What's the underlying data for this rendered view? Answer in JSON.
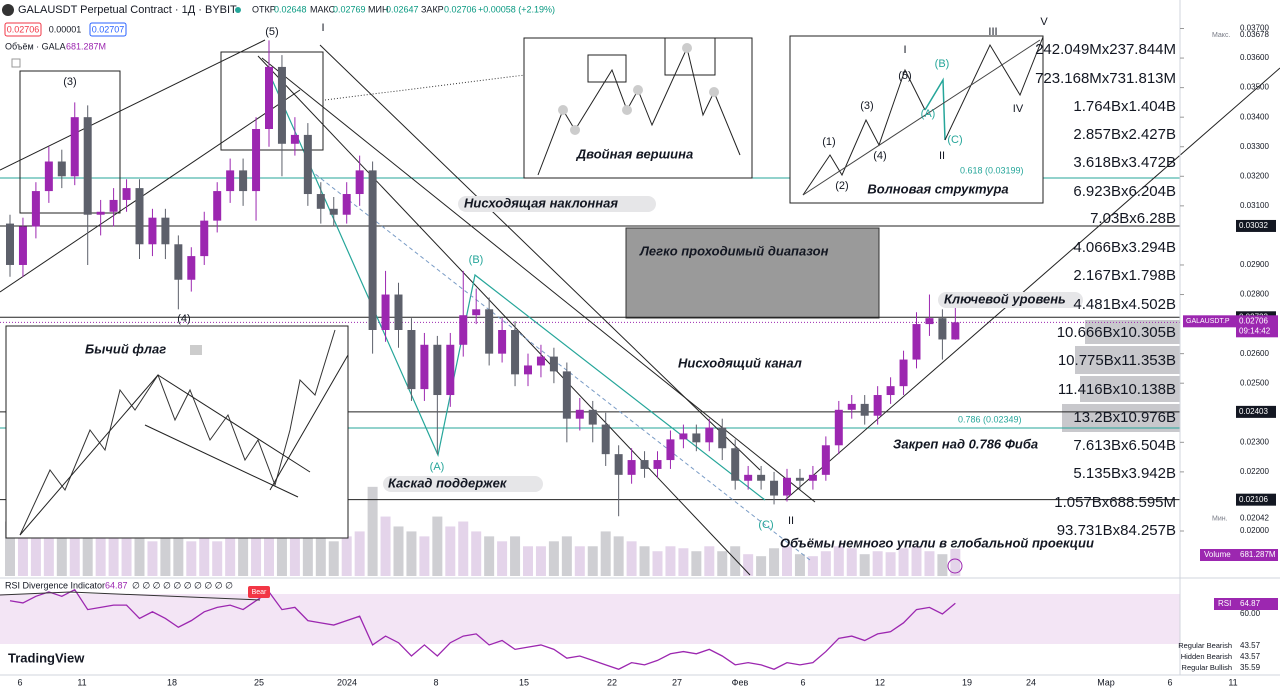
{
  "header": {
    "title": "GALAUSDT Perpetual Contract · 1Д · BYBIT",
    "open_label": "ОТКР",
    "open": "0.02648",
    "high_label": "МАКС",
    "high": "0.02769",
    "low_label": "МИН",
    "low": "0.02647",
    "close_label": "ЗАКР",
    "close": "0.02706",
    "change": "+0.00058 (+2.19%)",
    "sell": "0.02706",
    "spread": "0.00001",
    "buy": "0.02707",
    "volume_title": "Объём · GALA",
    "volume_value": "681.287M"
  },
  "waves": {
    "w3": "(3)",
    "w5": "(5)",
    "w1": "I",
    "w4": "(4)",
    "wA": "(A)",
    "wB": "(B)",
    "wC": "(C)",
    "w2": "II",
    "wV": "V"
  },
  "inset_double_top": {
    "title": "Двойная вершина"
  },
  "inset_waves": {
    "title": "Волновая структура",
    "labels": [
      "I",
      "(5)",
      "(B)",
      "(3)",
      "(A)",
      "(1)",
      "(4)",
      "(C)",
      "II",
      "(2)",
      "III",
      "V",
      "IV"
    ],
    "fib": "0.618 (0.03199)"
  },
  "inset_flag": {
    "title": "Бычий флаг"
  },
  "annotations": {
    "slope": "Нисходящая наклонная",
    "range": "Легко проходимый диапазон",
    "key": "Ключевой уровень",
    "channel": "Нисходящий канал",
    "fib786": "0.786 (0.02349)",
    "hold": "Закреп над 0.786 Фиба",
    "cascade": "Каскад поддержек",
    "volumes": "Объёмы немного упали в глобальной проекции"
  },
  "volume_profile": [
    "242.049Mx237.844M",
    "723.168Mx731.813M",
    "1.764Bx1.404B",
    "2.857Bx2.427B",
    "3.618Bx3.472B",
    "6.923Bx6.204B",
    "7.03Bx6.28B",
    "4.066Bx3.294B",
    "2.167Bx1.798B",
    "4.481Bx4.502B",
    "10.666Bx10.305B",
    "10.775Bx11.353B",
    "11.416Bx10.138B",
    "13.2Bx10.976B",
    "7.613Bx6.504B",
    "5.135Bx3.942B",
    "1.057Bx688.595M",
    "93.731Bx84.257B"
  ],
  "x_axis": [
    "6",
    "11",
    "18",
    "25",
    "2024",
    "8",
    "15",
    "22",
    "27",
    "Фев",
    "6",
    "12",
    "19",
    "24",
    "Мар",
    "6",
    "11"
  ],
  "logo": "TradingView",
  "chart_data": {
    "type": "candlestick",
    "up_color": "#9c27b0",
    "down_color": "#5d606b",
    "ylim": [
      0.02,
      0.037
    ],
    "yticks": [
      {
        "value": 0.037,
        "label": "0.03700"
      },
      {
        "value": 0.036,
        "label": "0.03600"
      },
      {
        "value": 0.035,
        "label": "0.03500"
      },
      {
        "value": 0.034,
        "label": "0.03400"
      },
      {
        "value": 0.033,
        "label": "0.03300"
      },
      {
        "value": 0.032,
        "label": "0.03200"
      },
      {
        "value": 0.031,
        "label": "0.03100"
      },
      {
        "value": 0.029,
        "label": "0.02900"
      },
      {
        "value": 0.028,
        "label": "0.02800"
      },
      {
        "value": 0.026,
        "label": "0.02600"
      },
      {
        "value": 0.025,
        "label": "0.02500"
      },
      {
        "value": 0.023,
        "label": "0.02300"
      },
      {
        "value": 0.022,
        "label": "0.02200"
      },
      {
        "value": 0.02,
        "label": "0.02000"
      }
    ],
    "levels": [
      0.03032,
      0.02723,
      0.02403,
      0.02106
    ],
    "max_label": "Макс.",
    "max": 0.03678,
    "min_label": "Мин.",
    "min": 0.02042,
    "last": {
      "symbol": "GALAUSDT.P",
      "price": 0.02706,
      "countdown": "09:14:42"
    },
    "volume_tag": "Volume",
    "volume_current": {
      "value": 681.287,
      "label": "681.287M"
    },
    "candles": [
      [
        0.0304,
        0.0307,
        0.0286,
        0.029
      ],
      [
        0.029,
        0.0306,
        0.0286,
        0.0303
      ],
      [
        0.0303,
        0.0318,
        0.0299,
        0.0315
      ],
      [
        0.0315,
        0.033,
        0.0311,
        0.0325
      ],
      [
        0.0325,
        0.0329,
        0.0316,
        0.032
      ],
      [
        0.032,
        0.0345,
        0.0317,
        0.034
      ],
      [
        0.034,
        0.0344,
        0.029,
        0.0307
      ],
      [
        0.0307,
        0.0312,
        0.03,
        0.0308
      ],
      [
        0.0308,
        0.0316,
        0.0303,
        0.0312
      ],
      [
        0.0312,
        0.0319,
        0.0308,
        0.0316
      ],
      [
        0.0316,
        0.0319,
        0.0292,
        0.0297
      ],
      [
        0.0297,
        0.0309,
        0.0293,
        0.0306
      ],
      [
        0.0306,
        0.0309,
        0.0292,
        0.0297
      ],
      [
        0.0297,
        0.03,
        0.0275,
        0.0285
      ],
      [
        0.0285,
        0.0296,
        0.0281,
        0.0293
      ],
      [
        0.0293,
        0.0308,
        0.029,
        0.0305
      ],
      [
        0.0305,
        0.0318,
        0.0301,
        0.0315
      ],
      [
        0.0315,
        0.0326,
        0.0311,
        0.0322
      ],
      [
        0.0322,
        0.0326,
        0.031,
        0.0315
      ],
      [
        0.0315,
        0.034,
        0.0305,
        0.0336
      ],
      [
        0.0336,
        0.0366,
        0.033,
        0.0357
      ],
      [
        0.0357,
        0.0361,
        0.032,
        0.0331
      ],
      [
        0.0331,
        0.034,
        0.0327,
        0.0334
      ],
      [
        0.0334,
        0.0338,
        0.031,
        0.0314
      ],
      [
        0.0314,
        0.0318,
        0.0304,
        0.0309
      ],
      [
        0.0309,
        0.0313,
        0.0303,
        0.0307
      ],
      [
        0.0307,
        0.0318,
        0.0304,
        0.0314
      ],
      [
        0.0314,
        0.0327,
        0.031,
        0.0322
      ],
      [
        0.0322,
        0.0325,
        0.026,
        0.0268
      ],
      [
        0.0268,
        0.0288,
        0.0264,
        0.028
      ],
      [
        0.028,
        0.0284,
        0.0262,
        0.0268
      ],
      [
        0.0268,
        0.0272,
        0.0244,
        0.0248
      ],
      [
        0.0248,
        0.0267,
        0.0244,
        0.0263
      ],
      [
        0.0263,
        0.0266,
        0.0226,
        0.0246
      ],
      [
        0.0246,
        0.0267,
        0.0242,
        0.0263
      ],
      [
        0.0263,
        0.0288,
        0.0259,
        0.0273
      ],
      [
        0.0273,
        0.0282,
        0.027,
        0.0275
      ],
      [
        0.0275,
        0.0279,
        0.0256,
        0.026
      ],
      [
        0.026,
        0.0272,
        0.0257,
        0.0268
      ],
      [
        0.0268,
        0.0271,
        0.0249,
        0.0253
      ],
      [
        0.0253,
        0.026,
        0.0249,
        0.0256
      ],
      [
        0.0256,
        0.0263,
        0.0252,
        0.0259
      ],
      [
        0.0259,
        0.0262,
        0.025,
        0.0254
      ],
      [
        0.0254,
        0.0257,
        0.023,
        0.0238
      ],
      [
        0.0238,
        0.0245,
        0.0234,
        0.0241
      ],
      [
        0.0241,
        0.0244,
        0.023,
        0.0236
      ],
      [
        0.0236,
        0.024,
        0.0222,
        0.0226
      ],
      [
        0.0226,
        0.0229,
        0.0205,
        0.0219
      ],
      [
        0.0219,
        0.0228,
        0.0216,
        0.0224
      ],
      [
        0.0224,
        0.0227,
        0.0218,
        0.0221
      ],
      [
        0.0221,
        0.0227,
        0.0218,
        0.0224
      ],
      [
        0.0224,
        0.0234,
        0.0221,
        0.0231
      ],
      [
        0.0231,
        0.0236,
        0.0228,
        0.0233
      ],
      [
        0.0233,
        0.0236,
        0.0227,
        0.023
      ],
      [
        0.023,
        0.0238,
        0.0227,
        0.0235
      ],
      [
        0.0235,
        0.0238,
        0.0224,
        0.0228
      ],
      [
        0.0228,
        0.0231,
        0.0214,
        0.0217
      ],
      [
        0.0217,
        0.0222,
        0.0214,
        0.0219
      ],
      [
        0.0219,
        0.0222,
        0.0214,
        0.0217
      ],
      [
        0.0217,
        0.022,
        0.0209,
        0.0212
      ],
      [
        0.0212,
        0.0221,
        0.021,
        0.0218
      ],
      [
        0.0218,
        0.0221,
        0.0214,
        0.0217
      ],
      [
        0.0217,
        0.0222,
        0.0214,
        0.0219
      ],
      [
        0.0219,
        0.0232,
        0.0217,
        0.0229
      ],
      [
        0.0229,
        0.0244,
        0.0226,
        0.0241
      ],
      [
        0.0241,
        0.0246,
        0.0238,
        0.0243
      ],
      [
        0.0243,
        0.0246,
        0.0236,
        0.0239
      ],
      [
        0.0239,
        0.0249,
        0.0236,
        0.0246
      ],
      [
        0.0246,
        0.0252,
        0.0243,
        0.0249
      ],
      [
        0.0249,
        0.0261,
        0.0246,
        0.0258
      ],
      [
        0.0258,
        0.0274,
        0.0255,
        0.027
      ],
      [
        0.027,
        0.028,
        0.0266,
        0.0272
      ],
      [
        0.0272,
        0.0275,
        0.0258,
        0.02648
      ],
      [
        0.02648,
        0.02769,
        0.02647,
        0.02706
      ]
    ],
    "volume": [
      1375,
      1500,
      1125,
      1750,
      1000,
      2425,
      1625,
      1250,
      1000,
      1125,
      1375,
      875,
      1000,
      1250,
      875,
      1000,
      875,
      1125,
      1000,
      1500,
      2750,
      2000,
      1375,
      1250,
      1000,
      875,
      1000,
      1125,
      2250,
      1500,
      1250,
      1125,
      1000,
      1500,
      1250,
      1375,
      1125,
      1000,
      875,
      1000,
      750,
      750,
      875,
      1000,
      750,
      750,
      1125,
      1000,
      875,
      750,
      625,
      750,
      700,
      625,
      750,
      625,
      750,
      550,
      500,
      700,
      750,
      550,
      500,
      625,
      750,
      700,
      550,
      625,
      600,
      700,
      750,
      625,
      550,
      681.287
    ],
    "rsi": {
      "title": "RSI Divergence Indicator",
      "value": "64.87",
      "flags": "∅ ∅ ∅ ∅ ∅ ∅ ∅ ∅ ∅ ∅",
      "bear": "Bear",
      "tag": "RSI",
      "tag_value": "64.87",
      "levels": [
        {
          "value": 60,
          "label": "60.00"
        },
        {
          "value": 43.57,
          "name": "Regular Bearish"
        },
        {
          "value": 43.57,
          "name": "Hidden Bearish"
        },
        {
          "value": 35.59,
          "name": "Regular Bullish"
        }
      ],
      "values": [
        66,
        65,
        68,
        70,
        68,
        71,
        62,
        63,
        64,
        64,
        58,
        61,
        58,
        54,
        57,
        61,
        63,
        64,
        62,
        66,
        70,
        62,
        63,
        57,
        56,
        55,
        57,
        59,
        46,
        50,
        47,
        41,
        46,
        41,
        47,
        50,
        51,
        46,
        48,
        44,
        45,
        46,
        44,
        40,
        41,
        39,
        37,
        35,
        38,
        37,
        39,
        42,
        43,
        42,
        44,
        41,
        37,
        38,
        37,
        35,
        38,
        37,
        38,
        43,
        49,
        50,
        48,
        51,
        52,
        56,
        62,
        63,
        60,
        64.87
      ]
    }
  }
}
